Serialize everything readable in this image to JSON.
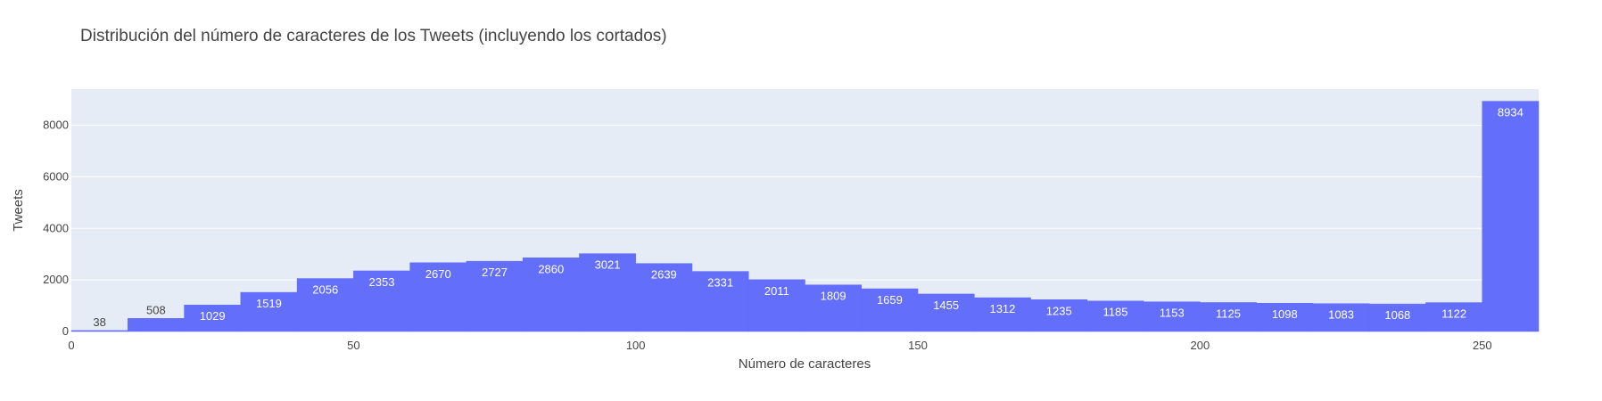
{
  "chart_data": {
    "type": "bar",
    "title": "Distribución del número de caracteres de los Tweets (incluyendo los cortados)",
    "xlabel": "Número de caracteres",
    "ylabel": "Tweets",
    "bin_width": 10,
    "bin_starts": [
      0,
      10,
      20,
      30,
      40,
      50,
      60,
      70,
      80,
      90,
      100,
      110,
      120,
      130,
      140,
      150,
      160,
      170,
      180,
      190,
      200,
      210,
      220,
      230,
      240,
      250
    ],
    "values": [
      38,
      508,
      1029,
      1519,
      2056,
      2353,
      2670,
      2727,
      2860,
      3021,
      2639,
      2331,
      2011,
      1809,
      1659,
      1455,
      1312,
      1235,
      1185,
      1153,
      1125,
      1098,
      1083,
      1068,
      1122,
      8934
    ],
    "xlim": [
      0,
      260
    ],
    "ylim": [
      0,
      9404
    ],
    "x_ticks": [
      0,
      50,
      100,
      150,
      200,
      250
    ],
    "y_ticks": [
      0,
      2000,
      4000,
      6000,
      8000
    ],
    "grid": true,
    "bar_color": "#636efa",
    "plot_bg": "#e5ecf6"
  }
}
